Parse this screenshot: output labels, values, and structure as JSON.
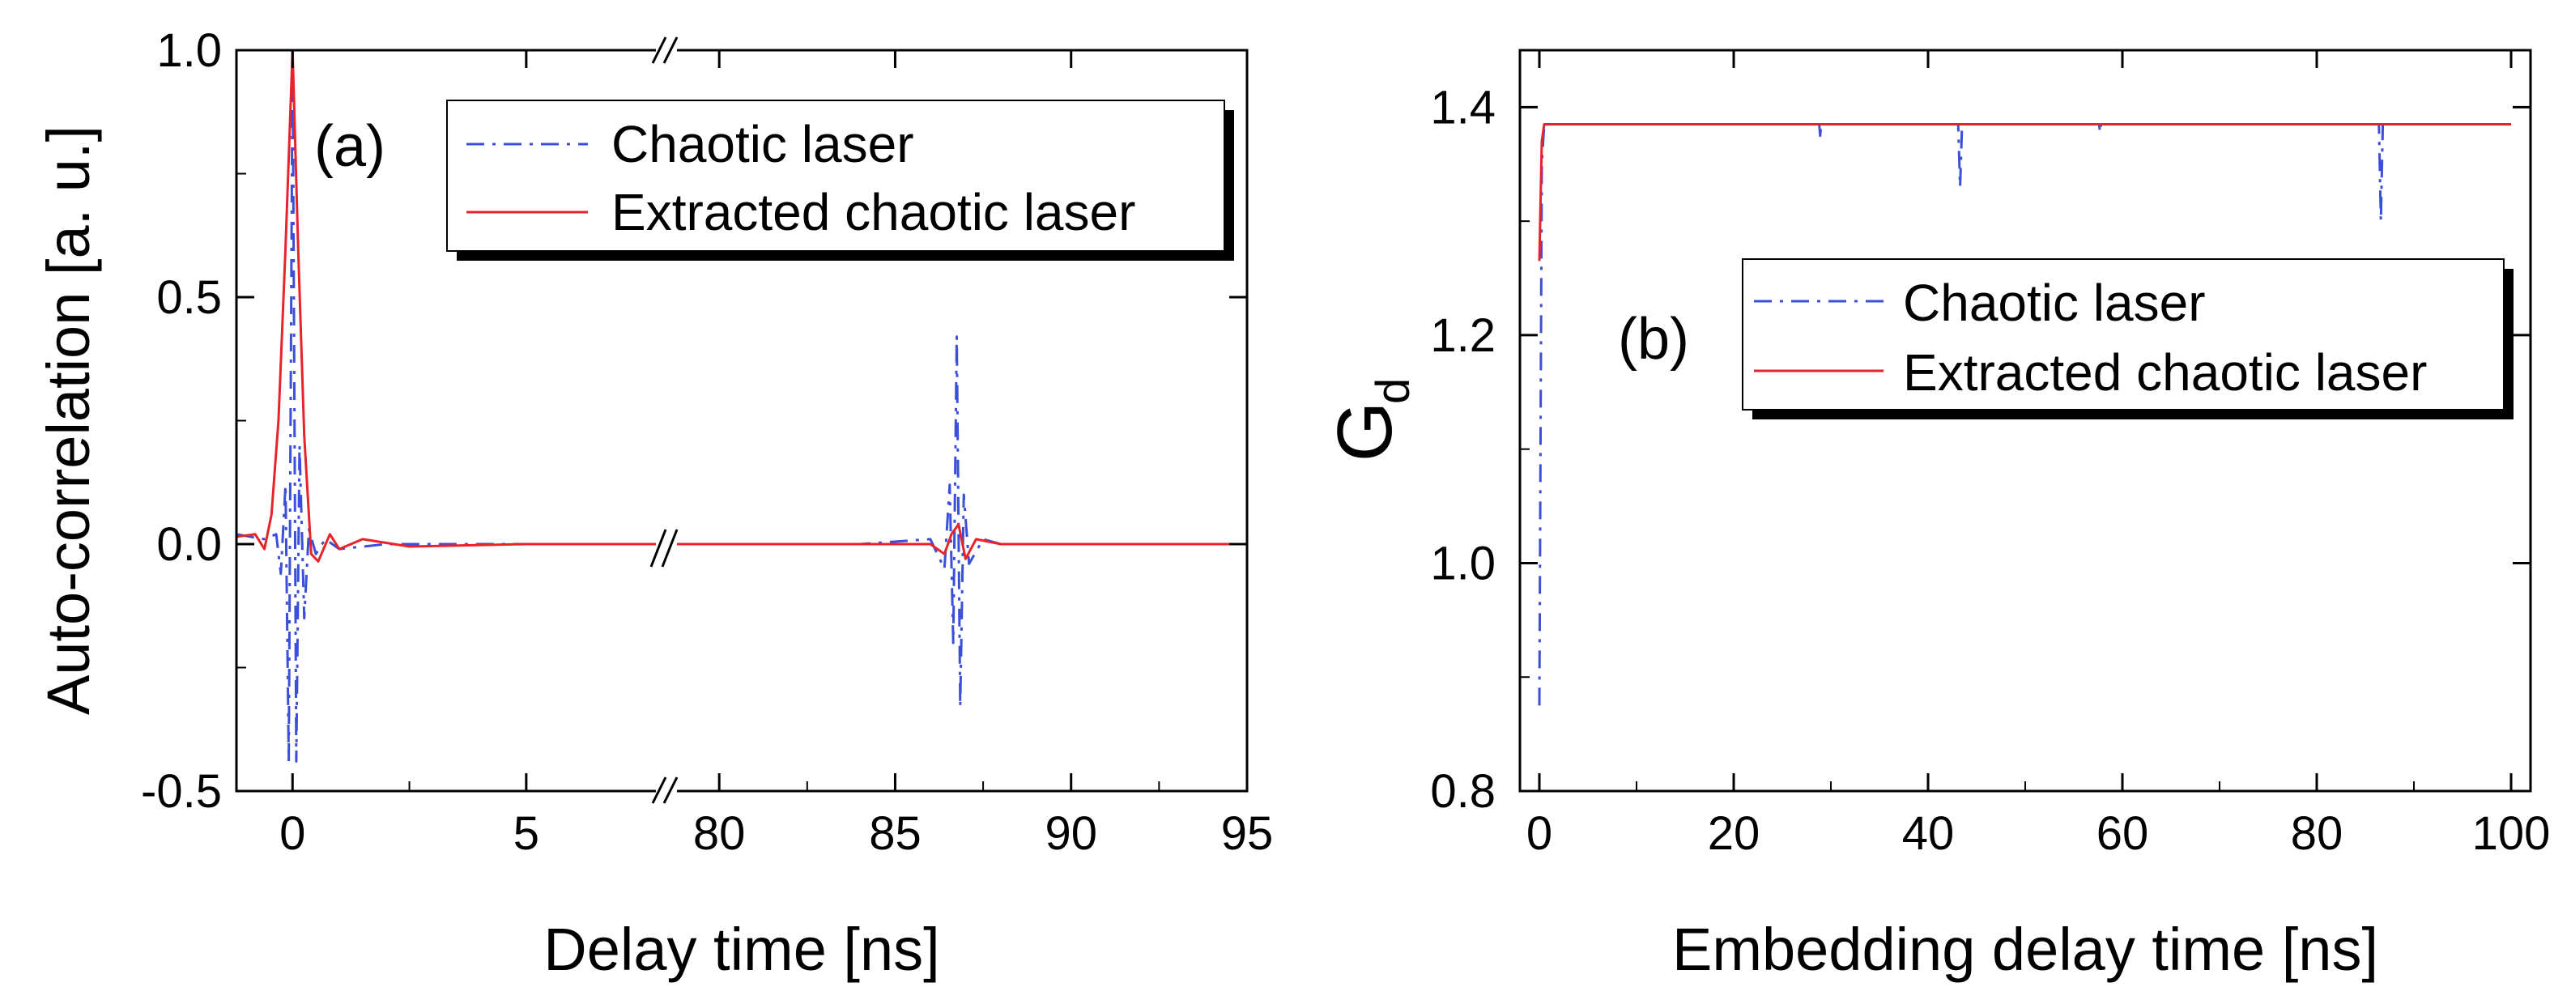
{
  "chart_data": [
    {
      "type": "line",
      "panel_label": "(a)",
      "xlabel": "Delay time [ns]",
      "ylabel": "Auto-correlation [a. u.]",
      "ylim": [
        -0.5,
        1.0
      ],
      "x_axis_break": "broken axis between 5 and 80 ns",
      "x_segments": [
        {
          "xlim": [
            -1.2,
            8.0
          ]
        },
        {
          "xlim": [
            78.5,
            95.0
          ]
        }
      ],
      "xticks": [
        0,
        5,
        80,
        85,
        90,
        95
      ],
      "xtick_labels": [
        "0",
        "5",
        "80",
        "85",
        "90",
        "95"
      ],
      "yticks": [
        -0.5,
        0.0,
        0.5,
        1.0
      ],
      "ytick_labels": [
        "-0.5",
        "0.0",
        "0.5",
        "1.0"
      ],
      "legend": {
        "position": "top-right",
        "entries": [
          "Chaotic laser",
          "Extracted chaotic laser"
        ]
      },
      "colors": {
        "chaotic": "#3b4fd8",
        "extracted": "#e8232a"
      },
      "series": [
        {
          "name": "Chaotic laser",
          "style": "dash-dot",
          "points": [
            [
              -1.2,
              0.02
            ],
            [
              -0.6,
              0.01
            ],
            [
              -0.35,
              0.02
            ],
            [
              -0.25,
              -0.06
            ],
            [
              -0.15,
              0.12
            ],
            [
              -0.08,
              -0.44
            ],
            [
              0.0,
              1.0
            ],
            [
              0.08,
              -0.44
            ],
            [
              0.15,
              0.2
            ],
            [
              0.25,
              -0.15
            ],
            [
              0.35,
              0.03
            ],
            [
              0.5,
              -0.02
            ],
            [
              0.7,
              0.01
            ],
            [
              1.0,
              -0.01
            ],
            [
              2.0,
              0.0
            ],
            [
              5.0,
              0.0
            ],
            [
              8.0,
              0.0
            ],
            [
              78.5,
              0.0
            ],
            [
              84.0,
              0.0
            ],
            [
              86.0,
              0.01
            ],
            [
              86.4,
              -0.05
            ],
            [
              86.55,
              0.12
            ],
            [
              86.65,
              -0.2
            ],
            [
              86.75,
              0.42
            ],
            [
              86.85,
              -0.33
            ],
            [
              86.95,
              0.1
            ],
            [
              87.1,
              -0.04
            ],
            [
              87.5,
              0.01
            ],
            [
              88.0,
              0.0
            ],
            [
              95.0,
              0.0
            ]
          ]
        },
        {
          "name": "Extracted chaotic laser",
          "style": "solid",
          "points": [
            [
              -1.2,
              0.015
            ],
            [
              -0.8,
              0.02
            ],
            [
              -0.6,
              -0.01
            ],
            [
              -0.45,
              0.06
            ],
            [
              -0.3,
              0.25
            ],
            [
              -0.15,
              0.6
            ],
            [
              0.0,
              1.0
            ],
            [
              0.12,
              0.6
            ],
            [
              0.25,
              0.22
            ],
            [
              0.4,
              -0.02
            ],
            [
              0.55,
              -0.035
            ],
            [
              0.8,
              0.02
            ],
            [
              1.0,
              -0.01
            ],
            [
              1.5,
              0.01
            ],
            [
              2.5,
              -0.005
            ],
            [
              5.0,
              0.0
            ],
            [
              8.0,
              0.0
            ],
            [
              78.5,
              0.0
            ],
            [
              86.0,
              0.0
            ],
            [
              86.4,
              -0.02
            ],
            [
              86.6,
              0.02
            ],
            [
              86.8,
              0.04
            ],
            [
              87.0,
              -0.03
            ],
            [
              87.3,
              0.01
            ],
            [
              88.0,
              0.0
            ],
            [
              95.0,
              0.0
            ]
          ]
        }
      ]
    },
    {
      "type": "line",
      "panel_label": "(b)",
      "xlabel": "Embedding delay time [ns]",
      "ylabel": "G",
      "ylabel_subscript": "d",
      "xlim": [
        -2.0,
        102.0
      ],
      "ylim": [
        0.8,
        1.45
      ],
      "xticks": [
        0,
        20,
        40,
        60,
        80,
        100
      ],
      "xtick_labels": [
        "0",
        "20",
        "40",
        "60",
        "80",
        "100"
      ],
      "yticks": [
        0.8,
        1.0,
        1.2,
        1.4
      ],
      "ytick_labels": [
        "0.8",
        "1.0",
        "1.2",
        "1.4"
      ],
      "legend": {
        "position": "center-right",
        "entries": [
          "Chaotic laser",
          "Extracted chaotic laser"
        ]
      },
      "colors": {
        "chaotic": "#3b4fd8",
        "extracted": "#e8232a"
      },
      "series": [
        {
          "name": "Chaotic laser",
          "style": "dash-dot",
          "points": [
            [
              0.0,
              0.875
            ],
            [
              0.25,
              1.35
            ],
            [
              0.5,
              1.385
            ],
            [
              28.8,
              1.385
            ],
            [
              28.9,
              1.375
            ],
            [
              29.0,
              1.385
            ],
            [
              43.1,
              1.385
            ],
            [
              43.3,
              1.33
            ],
            [
              43.5,
              1.385
            ],
            [
              57.6,
              1.385
            ],
            [
              57.7,
              1.378
            ],
            [
              57.8,
              1.385
            ],
            [
              86.4,
              1.385
            ],
            [
              86.6,
              1.3
            ],
            [
              86.8,
              1.385
            ],
            [
              100.0,
              1.385
            ]
          ]
        },
        {
          "name": "Extracted chaotic laser",
          "style": "solid",
          "points": [
            [
              0.0,
              1.265
            ],
            [
              0.25,
              1.37
            ],
            [
              0.5,
              1.385
            ],
            [
              100.0,
              1.385
            ]
          ]
        }
      ]
    }
  ]
}
